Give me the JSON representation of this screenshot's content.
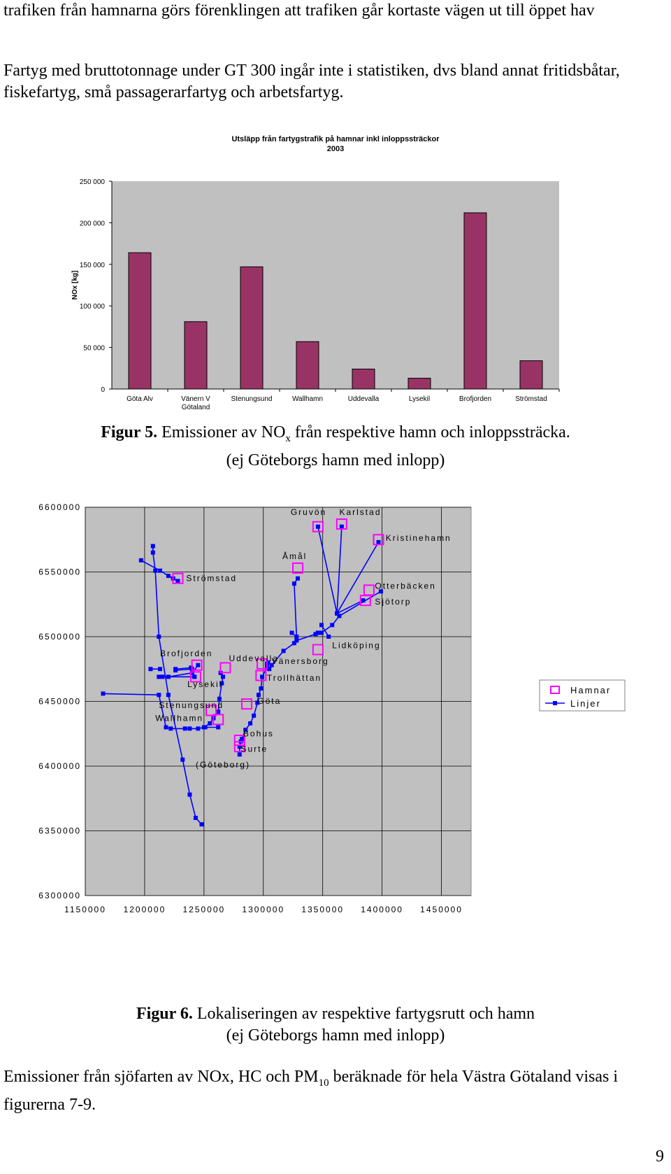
{
  "paragraphs": {
    "p1": "trafiken från hamnarna görs förenklingen att trafiken går kortaste vägen ut till öppet hav",
    "p2": "Fartyg med bruttotonnage under GT 300 ingår inte i statistiken, dvs bland annat fritidsbåtar, fiskefartyg, små passagerarfartyg och arbetsfartyg.",
    "p3_a": "Emissioner från sjöfarten av NOx, HC och PM",
    "p3_sub": "10",
    "p3_b": " beräknade för hela Västra Götaland visas i figurerna 7-9."
  },
  "figure5": {
    "label": "Figur 5.",
    "text_a": " Emissioner av NO",
    "text_sub": "x",
    "text_b": " från respektive hamn och inloppssträcka.",
    "line2": "(ej Göteborgs hamn med inlopp)"
  },
  "figure6": {
    "label": "Figur 6.",
    "text": "  Lokaliseringen av respektive fartygsrutt och hamn",
    "line2": "(ej Göteborgs hamn med inlopp)"
  },
  "page_number": "9",
  "chart_data": [
    {
      "type": "bar",
      "title": "Utsläpp från fartygstrafik på hamnar inkl inloppssträckor",
      "subtitle": "2003",
      "ylabel": "NOx [kg]",
      "xlabel": "",
      "ylim": [
        0,
        250000
      ],
      "yticks": [
        0,
        50000,
        100000,
        150000,
        200000,
        250000
      ],
      "ytick_labels": [
        "0",
        "50 000",
        "100 000",
        "150 000",
        "200 000",
        "250 000"
      ],
      "categories": [
        "Göta Alv",
        "Vänern V Götaland",
        "Stenungsund",
        "Wallhamn",
        "Uddevalla",
        "Lysekil",
        "Brofjorden",
        "Strömstad"
      ],
      "category_lines": [
        [
          "Göta Alv"
        ],
        [
          "Vänern V",
          "Götaland"
        ],
        [
          "Stenungsund"
        ],
        [
          "Wallhamn"
        ],
        [
          "Uddevalla"
        ],
        [
          "Lysekil"
        ],
        [
          "Brofjorden"
        ],
        [
          "Strömstad"
        ]
      ],
      "values": [
        164000,
        81000,
        147000,
        57000,
        24000,
        13000,
        212000,
        34000
      ],
      "bar_color": "#993366",
      "plot_bg": "#c0c0c0",
      "grid": false
    },
    {
      "type": "scatter",
      "xlim": [
        1150000,
        1475000
      ],
      "ylim": [
        6300000,
        6600000
      ],
      "xticks": [
        1150000,
        1200000,
        1250000,
        1300000,
        1350000,
        1400000,
        1450000
      ],
      "xtick_labels": [
        "1150000",
        "1200000",
        "1250000",
        "1300000",
        "1350000",
        "1400000",
        "1450000"
      ],
      "yticks": [
        6300000,
        6350000,
        6400000,
        6450000,
        6500000,
        6550000,
        6600000
      ],
      "ytick_labels": [
        "6300000",
        "6350000",
        "6400000",
        "6450000",
        "6500000",
        "6550000",
        "6600000"
      ],
      "grid": true,
      "plot_bg": "#c0c0c0",
      "line_color": "#0000ff",
      "harbor_color": "#ff00ff",
      "legend": {
        "position": "right",
        "entries": [
          "Hamnar",
          "Linjer"
        ]
      },
      "series": [
        {
          "name": "Linjer",
          "routes": [
            [
              [
                1207000,
                6570000
              ],
              [
                1207000,
                6565000
              ],
              [
                1209000,
                6551000
              ],
              [
                1212000,
                6500000
              ],
              [
                1220000,
                6455000
              ],
              [
                1232000,
                6405000
              ],
              [
                1238000,
                6378000
              ],
              [
                1243000,
                6360000
              ],
              [
                1248000,
                6355000
              ]
            ],
            [
              [
                1197000,
                6559000
              ],
              [
                1213000,
                6551000
              ],
              [
                1220000,
                6547000
              ],
              [
                1224000,
                6545000
              ],
              [
                1228000,
                6543000
              ]
            ],
            [
              [
                1165000,
                6456000
              ],
              [
                1212000,
                6455000
              ],
              [
                1218000,
                6430000
              ],
              [
                1222000,
                6429000
              ],
              [
                1234000,
                6429000
              ],
              [
                1238000,
                6429000
              ],
              [
                1245000,
                6429000
              ],
              [
                1250000,
                6430000
              ],
              [
                1255000,
                6433000
              ],
              [
                1258000,
                6437000
              ],
              [
                1262000,
                6442000
              ],
              [
                1263000,
                6452000
              ],
              [
                1265000,
                6464000
              ],
              [
                1266000,
                6469000
              ],
              [
                1264000,
                6472000
              ]
            ],
            [
              [
                1205000,
                6475000
              ],
              [
                1213000,
                6475000
              ]
            ],
            [
              [
                1215000,
                6469000
              ],
              [
                1242000,
                6469000
              ]
            ],
            [
              [
                1212000,
                6469000
              ],
              [
                1242000,
                6469000
              ]
            ],
            [
              [
                1220000,
                6469000
              ],
              [
                1240000,
                6472000
              ]
            ],
            [
              [
                1240000,
                6472000
              ],
              [
                1245000,
                6478000
              ]
            ],
            [
              [
                1226000,
                6474000
              ],
              [
                1240000,
                6475000
              ]
            ],
            [
              [
                1226000,
                6475000
              ],
              [
                1239000,
                6476000
              ]
            ],
            [
              [
                1251000,
                6430000
              ],
              [
                1262000,
                6430000
              ]
            ],
            [
              [
                1280000,
                6409000
              ],
              [
                1280000,
                6415000
              ],
              [
                1281000,
                6419000
              ],
              [
                1282000,
                6421000
              ],
              [
                1285000,
                6428000
              ],
              [
                1289000,
                6433000
              ],
              [
                1292000,
                6439000
              ],
              [
                1295000,
                6449000
              ],
              [
                1296000,
                6455000
              ],
              [
                1298000,
                6460000
              ],
              [
                1299000,
                6469000
              ],
              [
                1303000,
                6476000
              ],
              [
                1304000,
                6480000
              ],
              [
                1303000,
                6479000
              ],
              [
                1305000,
                6475000
              ],
              [
                1307000,
                6478000
              ],
              [
                1317000,
                6489000
              ],
              [
                1326000,
                6495000
              ],
              [
                1328000,
                6497000
              ],
              [
                1344000,
                6502000
              ],
              [
                1346000,
                6503000
              ]
            ],
            [
              [
                1346000,
                6503000
              ],
              [
                1349000,
                6503000
              ],
              [
                1358000,
                6509000
              ],
              [
                1364000,
                6516000
              ],
              [
                1399000,
                6535000
              ]
            ],
            [
              [
                1349000,
                6509000
              ],
              [
                1355000,
                6500000
              ]
            ],
            [
              [
                1324000,
                6503000
              ],
              [
                1328000,
                6500000
              ],
              [
                1326000,
                6541000
              ],
              [
                1329000,
                6545000
              ]
            ],
            [
              [
                1362000,
                6518000
              ],
              [
                1346000,
                6585000
              ]
            ],
            [
              [
                1362000,
                6518000
              ],
              [
                1366000,
                6585000
              ]
            ],
            [
              [
                1362000,
                6518000
              ],
              [
                1397000,
                6573000
              ]
            ],
            [
              [
                1362000,
                6518000
              ],
              [
                1384000,
                6528000
              ]
            ]
          ]
        },
        {
          "name": "Hamnar",
          "points": [
            [
              1228000,
              6545000
            ],
            [
              1329000,
              6553000
            ],
            [
              1346000,
              6585000
            ],
            [
              1366000,
              6587000
            ],
            [
              1397000,
              6575000
            ],
            [
              1389000,
              6536000
            ],
            [
              1386000,
              6528000
            ],
            [
              1346000,
              6490000
            ],
            [
              1244000,
              6478000
            ],
            [
              1268000,
              6476000
            ],
            [
              1299000,
              6479000
            ],
            [
              1298000,
              6470000
            ],
            [
              1243000,
              6469000
            ],
            [
              1286000,
              6448000
            ],
            [
              1256000,
              6443000
            ],
            [
              1262000,
              6436000
            ],
            [
              1280000,
              6420000
            ],
            [
              1280000,
              6415000
            ]
          ]
        }
      ],
      "annotations": [
        {
          "text": "Gruvön",
          "x": 1323000,
          "y": 6594000
        },
        {
          "text": "Karlstad",
          "x": 1364000,
          "y": 6594000
        },
        {
          "text": "Kristinehamn",
          "x": 1403000,
          "y": 6574000
        },
        {
          "text": "Åmål",
          "x": 1316000,
          "y": 6560000
        },
        {
          "text": "Strömstad",
          "x": 1235000,
          "y": 6543000
        },
        {
          "text": "Otterbäcken",
          "x": 1394000,
          "y": 6537000
        },
        {
          "text": "Sjötorp",
          "x": 1394000,
          "y": 6525000
        },
        {
          "text": "Lidköping",
          "x": 1358000,
          "y": 6491000
        },
        {
          "text": "Brofjorden",
          "x": 1213000,
          "y": 6485000
        },
        {
          "text": "Uddevalla",
          "x": 1271000,
          "y": 6481000
        },
        {
          "text": "Vänersborg",
          "x": 1307000,
          "y": 6479000
        },
        {
          "text": "Trollhättan",
          "x": 1303000,
          "y": 6466000
        },
        {
          "text": "Lysekil",
          "x": 1236000,
          "y": 6461000
        },
        {
          "text": "Göta",
          "x": 1295000,
          "y": 6448000
        },
        {
          "text": "Stenungsund",
          "x": 1212000,
          "y": 6445000
        },
        {
          "text": "Wallhamn",
          "x": 1209000,
          "y": 6435000
        },
        {
          "text": "Bohus",
          "x": 1283000,
          "y": 6423000
        },
        {
          "text": "Surte",
          "x": 1281000,
          "y": 6411000
        },
        {
          "text": "(Göteborg)",
          "x": 1243000,
          "y": 6399000
        }
      ]
    }
  ]
}
